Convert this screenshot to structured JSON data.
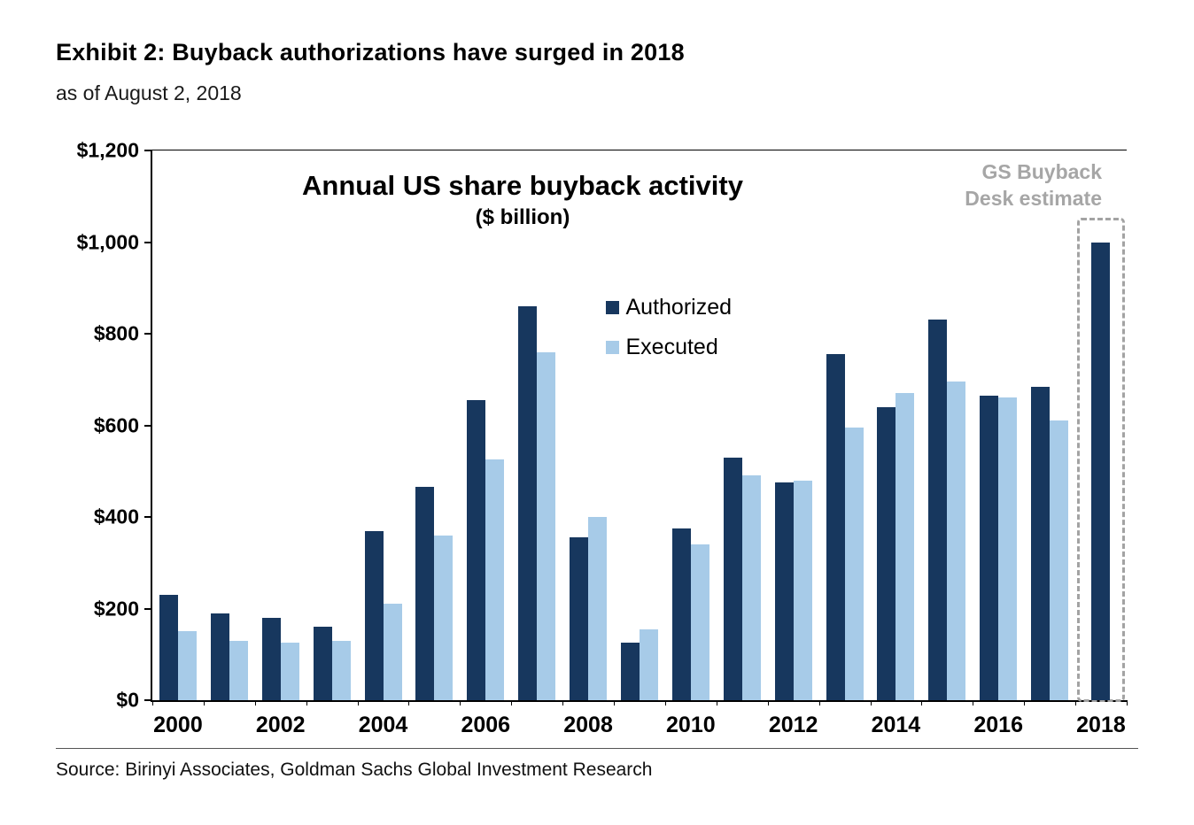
{
  "page": {
    "exhibit_title": "Exhibit 2: Buyback authorizations have surged in 2018",
    "as_of": "as of August 2, 2018",
    "source": "Source: Birinyi Associates, Goldman Sachs Global Investment Research"
  },
  "chart_data": {
    "type": "bar",
    "title": "Annual US share buyback activity",
    "subtitle": "($ billion)",
    "categories": [
      2000,
      2001,
      2002,
      2003,
      2004,
      2005,
      2006,
      2007,
      2008,
      2009,
      2010,
      2011,
      2012,
      2013,
      2014,
      2015,
      2016,
      2017,
      2018
    ],
    "series": [
      {
        "name": "Authorized",
        "color": "#17375e",
        "values": [
          230,
          190,
          180,
          160,
          370,
          465,
          655,
          860,
          355,
          125,
          375,
          530,
          475,
          755,
          640,
          830,
          665,
          685,
          1000
        ]
      },
      {
        "name": "Executed",
        "color": "#a7cbe8",
        "values": [
          150,
          130,
          125,
          130,
          210,
          360,
          525,
          760,
          400,
          155,
          340,
          490,
          480,
          595,
          670,
          695,
          660,
          610,
          null
        ]
      }
    ],
    "ylim": [
      0,
      1200
    ],
    "ytick_values": [
      0,
      200,
      400,
      600,
      800,
      1000,
      1200
    ],
    "ytick_labels": [
      "$0",
      "$200",
      "$400",
      "$600",
      "$800",
      "$1,000",
      "$1,200"
    ],
    "xtick_label_interval": 2,
    "grid": false,
    "legend_position": "inside-center",
    "annotation_lines": [
      "GS Buyback",
      "Desk estimate"
    ],
    "annotation_color": "#a6a6a6",
    "estimate_year": 2018,
    "estimate_box_color": "#a3a3a3"
  }
}
